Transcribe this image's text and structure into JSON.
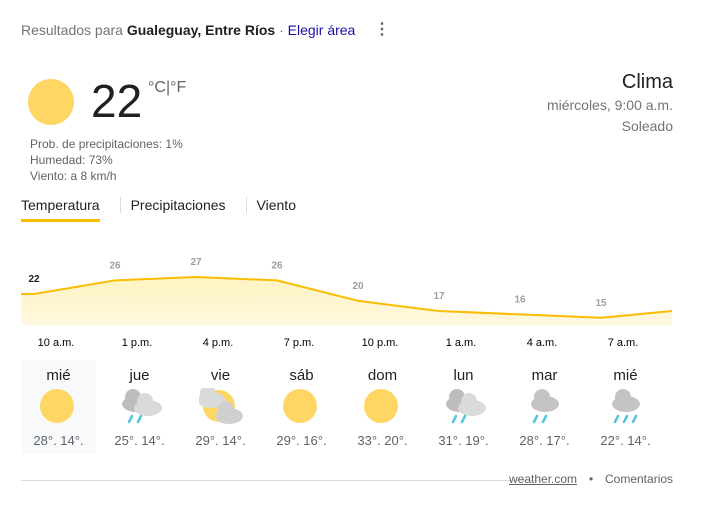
{
  "header": {
    "prefix": "Resultados para ",
    "location": "Gualeguay, Entre Ríos",
    "separator": " · ",
    "choose_area": "Elegir área",
    "more_icon": "more-vert-icon"
  },
  "current": {
    "temperature": "22",
    "unit_c": "°C",
    "unit_sep": "|",
    "unit_f": "°F",
    "icon": "sun-icon",
    "precip": "Prob. de precipitaciones: 1%",
    "humidity": "Humedad: 73%",
    "wind": "Viento: a 8 km/h",
    "title": "Clima",
    "datetime": "miércoles, 9:00 a.m.",
    "condition": "Soleado"
  },
  "tabs": [
    {
      "label": "Temperatura",
      "active": true
    },
    {
      "label": "Precipitaciones"
    },
    {
      "label": "Viento"
    }
  ],
  "chart_data": {
    "type": "area",
    "x": [
      "10 a.m.",
      "1 p.m.",
      "4 p.m.",
      "7 p.m.",
      "10 p.m.",
      "1 a.m.",
      "4 a.m.",
      "7 a.m."
    ],
    "values": [
      22,
      26,
      27,
      26,
      20,
      17,
      16,
      15
    ],
    "line_color": "#fbbc04",
    "fill_color": "#fef7e0"
  },
  "forecast": [
    {
      "day": "mié",
      "icon": "sunny",
      "high": "28°",
      "low": "14°"
    },
    {
      "day": "jue",
      "icon": "rain-cloudy",
      "high": "25°",
      "low": "14°"
    },
    {
      "day": "vie",
      "icon": "partly-cloudy",
      "high": "29°",
      "low": "14°"
    },
    {
      "day": "sáb",
      "icon": "sunny",
      "high": "29°",
      "low": "16°"
    },
    {
      "day": "dom",
      "icon": "sunny",
      "high": "33°",
      "low": "20°"
    },
    {
      "day": "lun",
      "icon": "rain-cloudy",
      "high": "31°",
      "low": "19°"
    },
    {
      "day": "mar",
      "icon": "light-rain",
      "high": "28°",
      "low": "17°"
    },
    {
      "day": "mié",
      "icon": "rain",
      "high": "22°",
      "low": "14°"
    }
  ],
  "footer": {
    "source": "weather.com",
    "dot": "•",
    "feedback": "Comentarios"
  }
}
